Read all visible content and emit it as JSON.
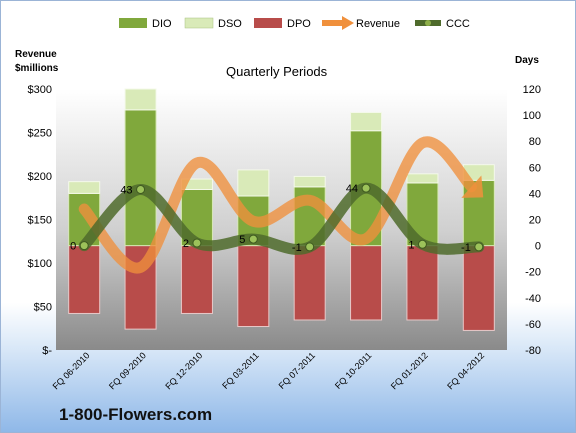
{
  "company": "1-800-Flowers.com",
  "colors": {
    "dio": "#80a83c",
    "dso": "#d9eab8",
    "dpo": "#b84c4a",
    "revenue": "#f0903c",
    "ccc": "#4f6b2c"
  },
  "chart_data": {
    "type": "bar",
    "title": "Quarterly Periods",
    "left_axis_label_line1": "Revenue",
    "left_axis_label_line2": "$millions",
    "right_axis_label": "Days",
    "left_ylim": [
      0,
      300
    ],
    "right_ylim": [
      -80,
      120
    ],
    "left_ticks": [
      "$300",
      "$250",
      "$200",
      "$150",
      "$100",
      "$50",
      "$-"
    ],
    "left_tick_values": [
      300,
      250,
      200,
      150,
      100,
      50,
      0
    ],
    "right_ticks": [
      "120",
      "100",
      "80",
      "60",
      "40",
      "20",
      "0",
      "-20",
      "-40",
      "-60",
      "-80"
    ],
    "right_tick_values": [
      120,
      100,
      80,
      60,
      40,
      20,
      0,
      -20,
      -40,
      -60,
      -80
    ],
    "categories": [
      "FQ 06-2010",
      "FQ 09-2010",
      "FQ 12-2010",
      "FQ 03-2011",
      "FQ 07-2011",
      "FQ 10-2011",
      "FQ 01-2012",
      "FQ 04-2012"
    ],
    "legend": [
      "DIO",
      "DSO",
      "DPO",
      "Revenue",
      "CCC"
    ],
    "series": [
      {
        "name": "DIO",
        "axis": "days",
        "values": [
          40,
          104,
          43,
          38,
          45,
          88,
          48,
          50
        ]
      },
      {
        "name": "DSO",
        "axis": "days",
        "values": [
          9,
          16,
          8,
          20,
          8,
          14,
          7,
          12
        ]
      },
      {
        "name": "DPO",
        "axis": "days",
        "values": [
          -52,
          -64,
          -52,
          -62,
          -57,
          -57,
          -57,
          -65
        ]
      },
      {
        "name": "Revenue",
        "axis": "revenue",
        "values": [
          162,
          95,
          215,
          148,
          172,
          128,
          238,
          180
        ]
      },
      {
        "name": "CCC",
        "axis": "days",
        "values": [
          0,
          43,
          2,
          5,
          -1,
          44,
          1,
          -1
        ]
      }
    ],
    "ccc_labels": [
      "0",
      "43",
      "2",
      "5",
      "-1",
      "44",
      "1",
      "-1"
    ],
    "grid": false,
    "legend_position": "top"
  }
}
